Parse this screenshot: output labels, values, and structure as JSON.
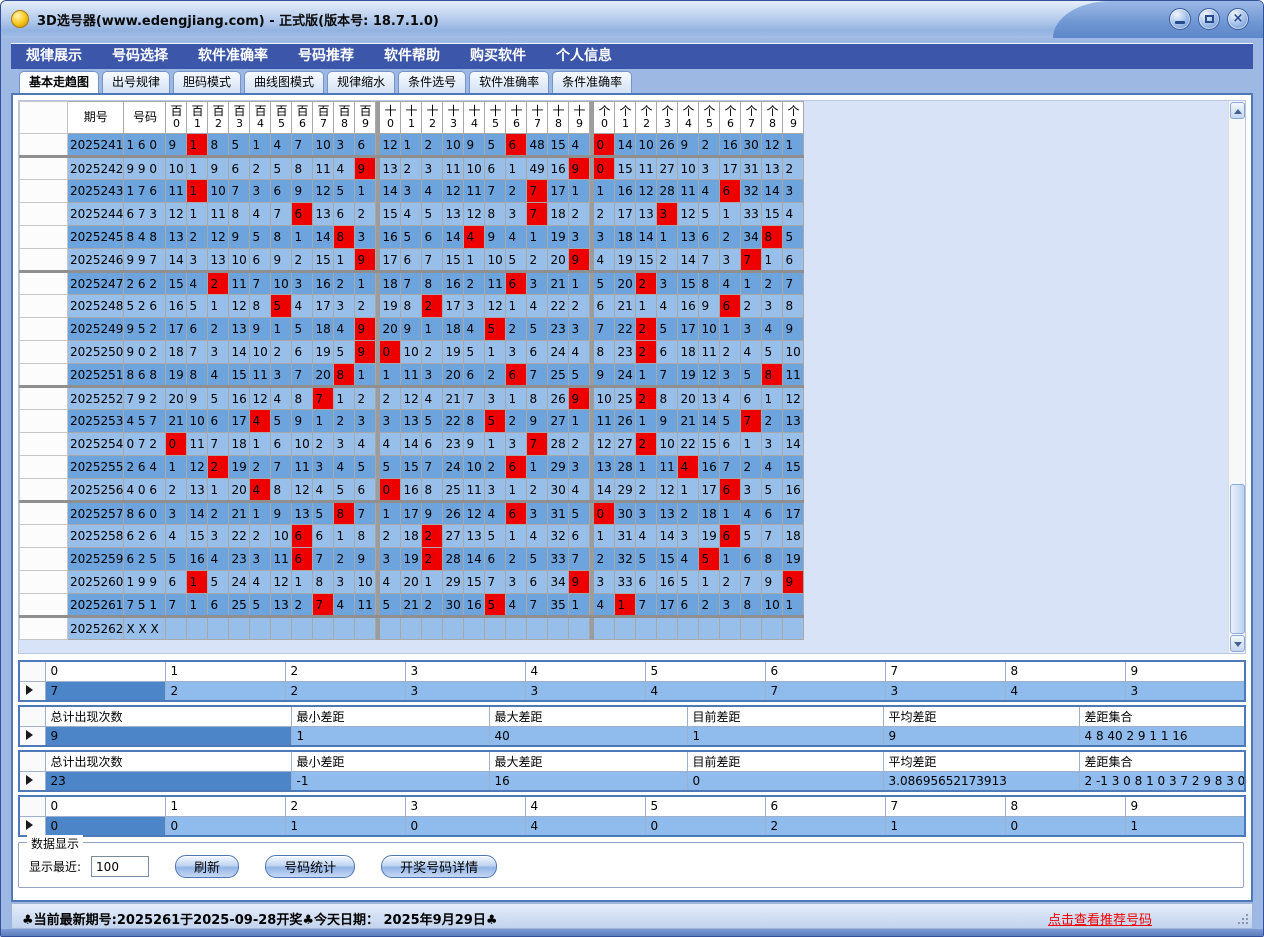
{
  "window": {
    "title": "3D选号器(www.edengjiang.com) - 正式版(版本号: 18.7.1.0)"
  },
  "menu": {
    "items": [
      "规律展示",
      "号码选择",
      "软件准确率",
      "号码推荐",
      "软件帮助",
      "购买软件",
      "个人信息"
    ]
  },
  "tabs": {
    "active": "基本走趋图",
    "items": [
      "基本走趋图",
      "出号规律",
      "胆码模式",
      "曲线图模式",
      "规律缩水",
      "条件选号",
      "软件准确率",
      "条件准确率"
    ]
  },
  "trend": {
    "headers": {
      "period": "期号",
      "number": "号码",
      "groups": [
        {
          "label": "百",
          "digits": [
            "0",
            "1",
            "2",
            "3",
            "4",
            "5",
            "6",
            "7",
            "8",
            "9"
          ]
        },
        {
          "label": "十",
          "digits": [
            "0",
            "1",
            "2",
            "3",
            "4",
            "5",
            "6",
            "7",
            "8",
            "9"
          ]
        },
        {
          "label": "个",
          "digits": [
            "0",
            "1",
            "2",
            "3",
            "4",
            "5",
            "6",
            "7",
            "8",
            "9"
          ]
        }
      ]
    },
    "rows": [
      {
        "period": "2025241",
        "number": "1 6 0",
        "bai": [
          "9",
          "1R",
          "8",
          "5",
          "1",
          "4",
          "7",
          "10",
          "3",
          "6"
        ],
        "shi": [
          "12",
          "1",
          "2",
          "10",
          "9",
          "5",
          "6R",
          "48",
          "15",
          "4"
        ],
        "ge": [
          "0R",
          "14",
          "10",
          "26",
          "9",
          "2",
          "16",
          "30",
          "12",
          "1"
        ]
      },
      {
        "period": "2025242",
        "number": "9 9 0",
        "bai": [
          "10",
          "1",
          "9",
          "6",
          "2",
          "5",
          "8",
          "11",
          "4",
          "9R"
        ],
        "shi": [
          "13",
          "2",
          "3",
          "11",
          "10",
          "6",
          "1",
          "49",
          "16",
          "9R"
        ],
        "ge": [
          "0R",
          "15",
          "11",
          "27",
          "10",
          "3",
          "17",
          "31",
          "13",
          "2"
        ]
      },
      {
        "period": "2025243",
        "number": "1 7 6",
        "bai": [
          "11",
          "1R",
          "10",
          "7",
          "3",
          "6",
          "9",
          "12",
          "5",
          "1"
        ],
        "shi": [
          "14",
          "3",
          "4",
          "12",
          "11",
          "7",
          "2",
          "7R",
          "17",
          "1"
        ],
        "ge": [
          "1",
          "16",
          "12",
          "28",
          "11",
          "4",
          "6R",
          "32",
          "14",
          "3"
        ]
      },
      {
        "period": "2025244",
        "number": "6 7 3",
        "bai": [
          "12",
          "1",
          "11",
          "8",
          "4",
          "7",
          "6R",
          "13",
          "6",
          "2"
        ],
        "shi": [
          "15",
          "4",
          "5",
          "13",
          "12",
          "8",
          "3",
          "7R",
          "18",
          "2"
        ],
        "ge": [
          "2",
          "17",
          "13",
          "3R",
          "12",
          "5",
          "1",
          "33",
          "15",
          "4"
        ]
      },
      {
        "period": "2025245",
        "number": "8 4 8",
        "bai": [
          "13",
          "2",
          "12",
          "9",
          "5",
          "8",
          "1",
          "14",
          "8R",
          "3"
        ],
        "shi": [
          "16",
          "5",
          "6",
          "14",
          "4R",
          "9",
          "4",
          "1",
          "19",
          "3"
        ],
        "ge": [
          "3",
          "18",
          "14",
          "1",
          "13",
          "6",
          "2",
          "34",
          "8R",
          "5"
        ]
      },
      {
        "period": "2025246",
        "number": "9 9 7",
        "bai": [
          "14",
          "3",
          "13",
          "10",
          "6",
          "9",
          "2",
          "15",
          "1",
          "9R"
        ],
        "shi": [
          "17",
          "6",
          "7",
          "15",
          "1",
          "10",
          "5",
          "2",
          "20",
          "9R"
        ],
        "ge": [
          "4",
          "19",
          "15",
          "2",
          "14",
          "7",
          "3",
          "7R",
          "1",
          "6"
        ]
      },
      {
        "period": "2025247",
        "number": "2 6 2",
        "bai": [
          "15",
          "4",
          "2R",
          "11",
          "7",
          "10",
          "3",
          "16",
          "2",
          "1"
        ],
        "shi": [
          "18",
          "7",
          "8",
          "16",
          "2",
          "11",
          "6R",
          "3",
          "21",
          "1"
        ],
        "ge": [
          "5",
          "20",
          "2R",
          "3",
          "15",
          "8",
          "4",
          "1",
          "2",
          "7"
        ]
      },
      {
        "period": "2025248",
        "number": "5 2 6",
        "bai": [
          "16",
          "5",
          "1",
          "12",
          "8",
          "5R",
          "4",
          "17",
          "3",
          "2"
        ],
        "shi": [
          "19",
          "8",
          "2R",
          "17",
          "3",
          "12",
          "1",
          "4",
          "22",
          "2"
        ],
        "ge": [
          "6",
          "21",
          "1",
          "4",
          "16",
          "9",
          "6R",
          "2",
          "3",
          "8"
        ]
      },
      {
        "period": "2025249",
        "number": "9 5 2",
        "bai": [
          "17",
          "6",
          "2",
          "13",
          "9",
          "1",
          "5",
          "18",
          "4",
          "9R"
        ],
        "shi": [
          "20",
          "9",
          "1",
          "18",
          "4",
          "5R",
          "2",
          "5",
          "23",
          "3"
        ],
        "ge": [
          "7",
          "22",
          "2R",
          "5",
          "17",
          "10",
          "1",
          "3",
          "4",
          "9"
        ]
      },
      {
        "period": "2025250",
        "number": "9 0 2",
        "bai": [
          "18",
          "7",
          "3",
          "14",
          "10",
          "2",
          "6",
          "19",
          "5",
          "9R"
        ],
        "shi": [
          "0R",
          "10",
          "2",
          "19",
          "5",
          "1",
          "3",
          "6",
          "24",
          "4"
        ],
        "ge": [
          "8",
          "23",
          "2R",
          "6",
          "18",
          "11",
          "2",
          "4",
          "5",
          "10"
        ]
      },
      {
        "period": "2025251",
        "number": "8 6 8",
        "bai": [
          "19",
          "8",
          "4",
          "15",
          "11",
          "3",
          "7",
          "20",
          "8R",
          "1"
        ],
        "shi": [
          "1",
          "11",
          "3",
          "20",
          "6",
          "2",
          "6R",
          "7",
          "25",
          "5"
        ],
        "ge": [
          "9",
          "24",
          "1",
          "7",
          "19",
          "12",
          "3",
          "5",
          "8R",
          "11"
        ]
      },
      {
        "period": "2025252",
        "number": "7 9 2",
        "bai": [
          "20",
          "9",
          "5",
          "16",
          "12",
          "4",
          "8",
          "7R",
          "1",
          "2"
        ],
        "shi": [
          "2",
          "12",
          "4",
          "21",
          "7",
          "3",
          "1",
          "8",
          "26",
          "9R"
        ],
        "ge": [
          "10",
          "25",
          "2R",
          "8",
          "20",
          "13",
          "4",
          "6",
          "1",
          "12"
        ]
      },
      {
        "period": "2025253",
        "number": "4 5 7",
        "bai": [
          "21",
          "10",
          "6",
          "17",
          "4R",
          "5",
          "9",
          "1",
          "2",
          "3"
        ],
        "shi": [
          "3",
          "13",
          "5",
          "22",
          "8",
          "5R",
          "2",
          "9",
          "27",
          "1"
        ],
        "ge": [
          "11",
          "26",
          "1",
          "9",
          "21",
          "14",
          "5",
          "7R",
          "2",
          "13"
        ]
      },
      {
        "period": "2025254",
        "number": "0 7 2",
        "bai": [
          "0R",
          "11",
          "7",
          "18",
          "1",
          "6",
          "10",
          "2",
          "3",
          "4"
        ],
        "shi": [
          "4",
          "14",
          "6",
          "23",
          "9",
          "1",
          "3",
          "7R",
          "28",
          "2"
        ],
        "ge": [
          "12",
          "27",
          "2R",
          "10",
          "22",
          "15",
          "6",
          "1",
          "3",
          "14"
        ]
      },
      {
        "period": "2025255",
        "number": "2 6 4",
        "bai": [
          "1",
          "12",
          "2R",
          "19",
          "2",
          "7",
          "11",
          "3",
          "4",
          "5"
        ],
        "shi": [
          "5",
          "15",
          "7",
          "24",
          "10",
          "2",
          "6R",
          "1",
          "29",
          "3"
        ],
        "ge": [
          "13",
          "28",
          "1",
          "11",
          "4R",
          "16",
          "7",
          "2",
          "4",
          "15"
        ]
      },
      {
        "period": "2025256",
        "number": "4 0 6",
        "bai": [
          "2",
          "13",
          "1",
          "20",
          "4R",
          "8",
          "12",
          "4",
          "5",
          "6"
        ],
        "shi": [
          "0R",
          "16",
          "8",
          "25",
          "11",
          "3",
          "1",
          "2",
          "30",
          "4"
        ],
        "ge": [
          "14",
          "29",
          "2",
          "12",
          "1",
          "17",
          "6R",
          "3",
          "5",
          "16"
        ]
      },
      {
        "period": "2025257",
        "number": "8 6 0",
        "bai": [
          "3",
          "14",
          "2",
          "21",
          "1",
          "9",
          "13",
          "5",
          "8R",
          "7"
        ],
        "shi": [
          "1",
          "17",
          "9",
          "26",
          "12",
          "4",
          "6R",
          "3",
          "31",
          "5"
        ],
        "ge": [
          "0R",
          "30",
          "3",
          "13",
          "2",
          "18",
          "1",
          "4",
          "6",
          "17"
        ]
      },
      {
        "period": "2025258",
        "number": "6 2 6",
        "bai": [
          "4",
          "15",
          "3",
          "22",
          "2",
          "10",
          "6R",
          "6",
          "1",
          "8"
        ],
        "shi": [
          "2",
          "18",
          "2R",
          "27",
          "13",
          "5",
          "1",
          "4",
          "32",
          "6"
        ],
        "ge": [
          "1",
          "31",
          "4",
          "14",
          "3",
          "19",
          "6R",
          "5",
          "7",
          "18"
        ]
      },
      {
        "period": "2025259",
        "number": "6 2 5",
        "bai": [
          "5",
          "16",
          "4",
          "23",
          "3",
          "11",
          "6R",
          "7",
          "2",
          "9"
        ],
        "shi": [
          "3",
          "19",
          "2R",
          "28",
          "14",
          "6",
          "2",
          "5",
          "33",
          "7"
        ],
        "ge": [
          "2",
          "32",
          "5",
          "15",
          "4",
          "5R",
          "1",
          "6",
          "8",
          "19"
        ]
      },
      {
        "period": "2025260",
        "number": "1 9 9",
        "bai": [
          "6",
          "1R",
          "5",
          "24",
          "4",
          "12",
          "1",
          "8",
          "3",
          "10"
        ],
        "shi": [
          "4",
          "20",
          "1",
          "29",
          "15",
          "7",
          "3",
          "6",
          "34",
          "9R"
        ],
        "ge": [
          "3",
          "33",
          "6",
          "16",
          "5",
          "1",
          "2",
          "7",
          "9",
          "9R"
        ]
      },
      {
        "period": "2025261",
        "number": "7 5 1",
        "bai": [
          "7",
          "1",
          "6",
          "25",
          "5",
          "13",
          "2",
          "7R",
          "4",
          "11"
        ],
        "shi": [
          "5",
          "21",
          "2",
          "30",
          "16",
          "5R",
          "4",
          "7",
          "35",
          "1"
        ],
        "ge": [
          "4",
          "1R",
          "7",
          "17",
          "6",
          "2",
          "3",
          "8",
          "10",
          "1"
        ]
      },
      {
        "period": "2025262",
        "number": "X X X",
        "bai": [
          "",
          "",
          "",
          "",
          "",
          "",
          "",
          "",
          "",
          ""
        ],
        "shi": [
          "",
          "",
          "",
          "",
          "",
          "",
          "",
          "",
          "",
          ""
        ],
        "ge": [
          "",
          "",
          "",
          "",
          "",
          "",
          "",
          "",
          "",
          ""
        ]
      }
    ]
  },
  "digit_strip_top": {
    "headers": [
      "0",
      "1",
      "2",
      "3",
      "4",
      "5",
      "6",
      "7",
      "8",
      "9"
    ],
    "values": [
      "7",
      "2",
      "2",
      "3",
      "3",
      "4",
      "7",
      "3",
      "4",
      "3"
    ]
  },
  "gap_stats_1": {
    "headers": [
      "总计出现次数",
      "最小差距",
      "最大差距",
      "目前差距",
      "平均差距",
      "差距集合"
    ],
    "values": [
      "9",
      "1",
      "40",
      "1",
      "9",
      "4 8 40 2 9 1 1 16"
    ]
  },
  "gap_stats_2": {
    "headers": [
      "总计出现次数",
      "最小差距",
      "最大差距",
      "目前差距",
      "平均差距",
      "差距集合"
    ],
    "values": [
      "23",
      "-1",
      "16",
      "0",
      "3.08695652173913",
      "2 -1 3 0 8 1 0 3 7 2 9 8 3 0..."
    ]
  },
  "digit_strip_bottom": {
    "headers": [
      "0",
      "1",
      "2",
      "3",
      "4",
      "5",
      "6",
      "7",
      "8",
      "9"
    ],
    "values": [
      "0",
      "0",
      "1",
      "0",
      "4",
      "0",
      "2",
      "1",
      "0",
      "1"
    ]
  },
  "controls": {
    "group_label": "数据显示",
    "show_label": "显示最近:",
    "recent_value": "100",
    "refresh_label": "刷新",
    "number_stats_label": "号码统计",
    "draw_details_label": "开奖号码详情"
  },
  "status": {
    "text": "♣当前最新期号:2025261于2025-09-28开奖♣今天日期： 2025年9月29日♣",
    "link": "点击查看推荐号码"
  },
  "colors": {
    "accent_red": "#ee0000",
    "row_dark": "#6da4dd",
    "row_light": "#97bfe9",
    "selected_cell": "#4c86c8",
    "menu_blue": "#3c57a9"
  }
}
